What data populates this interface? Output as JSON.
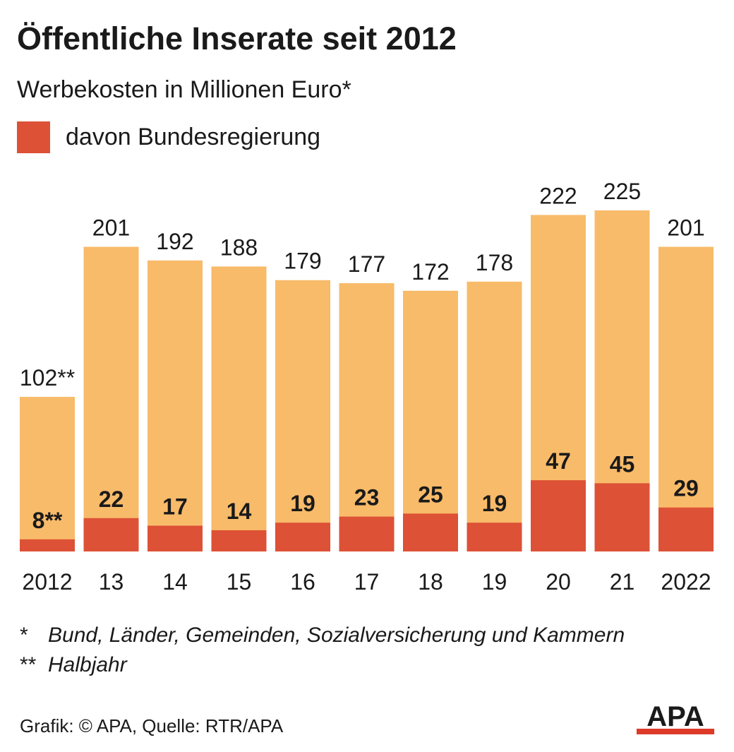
{
  "title": "Öffentliche Inserate seit 2012",
  "subtitle": "Werbekosten in Millionen Euro*",
  "legend": {
    "label": "davon Bundesregierung"
  },
  "colors": {
    "total": "#f8bb6a",
    "federal": "#dd5136",
    "text": "#1a1a1a",
    "logo_bar": "#dd3a2a"
  },
  "chart_data": {
    "type": "bar",
    "stacked": "overlay",
    "categories": [
      "2012",
      "13",
      "14",
      "15",
      "16",
      "17",
      "18",
      "19",
      "20",
      "21",
      "2022"
    ],
    "series": [
      {
        "values": [
          102,
          201,
          192,
          188,
          179,
          177,
          172,
          178,
          222,
          225,
          201
        ],
        "labels": [
          "102**",
          "201",
          "192",
          "188",
          "179",
          "177",
          "172",
          "178",
          "222",
          "225",
          "201"
        ]
      },
      {
        "name": "davon Bundesregierung",
        "values": [
          8,
          22,
          17,
          14,
          19,
          23,
          25,
          19,
          47,
          45,
          29
        ],
        "labels": [
          "8**",
          "22",
          "17",
          "14",
          "19",
          "23",
          "25",
          "19",
          "47",
          "45",
          "29"
        ]
      }
    ],
    "ylim": [
      0,
      225
    ],
    "grid": false,
    "legend_position": "top-left"
  },
  "footnotes": [
    {
      "mark": "*",
      "text": "Bund, Länder, Gemeinden, Sozialversicherung und Kammern"
    },
    {
      "mark": "**",
      "text": "Halbjahr"
    }
  ],
  "source": "Grafik: © APA, Quelle: RTR/APA",
  "logo": {
    "text": "APA"
  }
}
